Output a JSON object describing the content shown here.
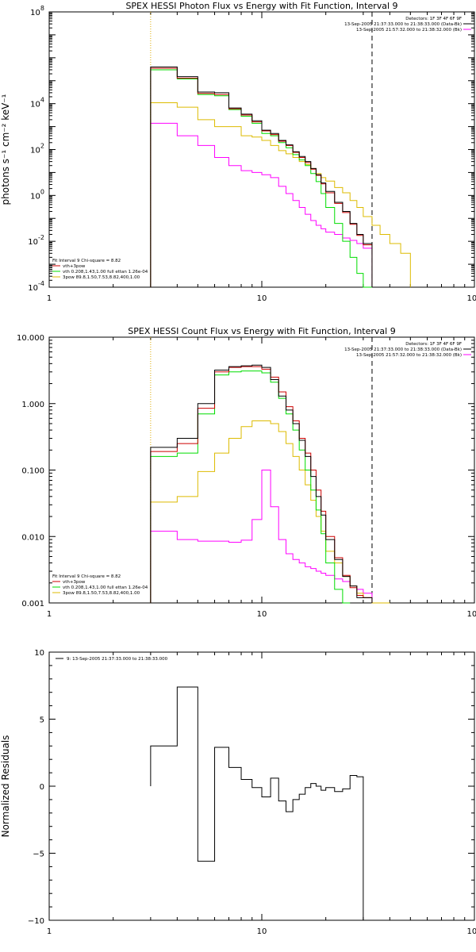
{
  "chart_data": [
    {
      "type": "line",
      "title": "SPEX HESSI Photon Flux vs Energy with Fit Function, Interval 9",
      "xlabel": "",
      "ylabel": "photons s⁻¹ cm⁻² keV⁻¹",
      "xscale": "log",
      "yscale": "log",
      "xlim": [
        1,
        100
      ],
      "ylim": [
        0.0001,
        100000000
      ],
      "x_ticks": [
        "1",
        "10",
        "100"
      ],
      "y_ticks": [
        {
          "v": 0.0001,
          "b": "10",
          "e": "-4"
        },
        {
          "v": 0.01,
          "b": "10",
          "e": "-2"
        },
        {
          "v": 1,
          "b": "10",
          "e": "0"
        },
        {
          "v": 100,
          "b": "10",
          "e": "2"
        },
        {
          "v": 10000,
          "b": "10",
          "e": "4"
        },
        {
          "v": 100000000,
          "b": "10",
          "e": "8"
        }
      ],
      "legend_top": [
        "Detectors: 1F 3F 4F 6F 9F",
        "13-Sep-2005 21:37:33.000 to 21:38:33.000 (Data-Bk)",
        "13-Sep-2005 21:57:32.000 to 21:38:32.000 (Bk)"
      ],
      "legend_top_colors": [
        "",
        "#000000",
        "#ff00ff"
      ],
      "legend_bottom": [
        "Fit Interval 9   Chi-square = 8.82",
        "vth+3pow",
        "vth 0.208,1.43,1.00  full ettan 1.26e-04",
        "3pow 89.8,1.50,7.53,8.82,400,1.00"
      ],
      "legend_bottom_colors": [
        "",
        "#cc0000",
        "#00dd00",
        "#ddbb00"
      ],
      "vlines": [
        {
          "x": 3,
          "style": "dotted",
          "color": "#ddaa00"
        },
        {
          "x": 33,
          "style": "dashed",
          "color": "#000000"
        }
      ],
      "energy_edges": [
        3,
        4,
        5,
        6,
        7,
        8,
        9,
        10,
        11,
        12,
        13,
        14,
        15,
        16,
        17,
        18,
        19,
        20,
        22,
        24,
        26,
        28,
        30,
        33,
        36,
        40,
        45,
        50
      ],
      "series": [
        {
          "name": "13-Sep-2005 21:37:33.000 to 21:38:33.000 (Data-Bk)",
          "color": "#000000",
          "values": [
            400000,
            150000,
            32000,
            30000,
            6500,
            3500,
            1800,
            700,
            500,
            250,
            160,
            80,
            50,
            30,
            15,
            8,
            3.5,
            1.5,
            0.5,
            0.2,
            0.06,
            0.02,
            0.008
          ]
        },
        {
          "name": "vth+3pow",
          "color": "#cc0000",
          "values": [
            350000,
            130000,
            28000,
            25000,
            6000,
            3200,
            1600,
            650,
            450,
            230,
            150,
            75,
            45,
            27,
            14,
            7.5,
            3.2,
            1.3,
            0.45,
            0.18,
            0.055,
            0.018,
            0.007
          ]
        },
        {
          "name": "vth 0.208,1.43,1.00  full ettan 1.26e-04",
          "color": "#00dd00",
          "values": [
            300000,
            120000,
            25000,
            22000,
            5500,
            2800,
            1400,
            500,
            400,
            200,
            120,
            60,
            35,
            20,
            9,
            4,
            1.2,
            0.3,
            0.06,
            0.01,
            0.002,
            0.0004,
            0.0001
          ]
        },
        {
          "name": "3pow 89.8,1.50,7.53,8.82,400,1.00",
          "color": "#ddbb00",
          "values": [
            11000,
            7000,
            2000,
            1000,
            1000,
            400,
            350,
            250,
            150,
            90,
            65,
            45,
            30,
            22,
            15,
            9,
            6,
            4.2,
            2.2,
            1.3,
            0.6,
            0.3,
            0.12,
            0.05,
            0.02,
            0.008,
            0.003
          ]
        },
        {
          "name": "13-Sep-2005 21:57:32.000 to 21:38:32.000 (Bk)",
          "color": "#ff00ff",
          "values": [
            1400,
            400,
            150,
            45,
            20,
            12,
            10,
            8,
            6,
            2.5,
            1.2,
            0.6,
            0.3,
            0.15,
            0.08,
            0.05,
            0.035,
            0.025,
            0.02,
            0.014,
            0.011,
            0.008,
            0.005
          ]
        }
      ]
    },
    {
      "type": "line",
      "title": "SPEX HESSI Count Flux vs Energy with Fit Function, Interval 9",
      "xlabel": "",
      "ylabel": "",
      "xscale": "log",
      "yscale": "log",
      "xlim": [
        1,
        100
      ],
      "ylim": [
        0.001,
        10
      ],
      "x_ticks": [
        "1",
        "10",
        "100"
      ],
      "y_ticks": [
        {
          "v": 0.001,
          "t": "0.001"
        },
        {
          "v": 0.01,
          "t": "0.010"
        },
        {
          "v": 0.1,
          "t": "0.100"
        },
        {
          "v": 1,
          "t": "1.000"
        },
        {
          "v": 10,
          "t": "10.000"
        }
      ],
      "legend_top": [
        "Detectors: 1F 3F 4F 6F 9F",
        "13-Sep-2005 21:37:33.000 to 21:38:33.000 (Data-Bk)",
        "13-Sep-2005 21:57:32.000 to 21:38:32.000 (Bk)"
      ],
      "legend_top_colors": [
        "",
        "#000000",
        "#ff00ff"
      ],
      "legend_bottom": [
        "Fit Interval 9   Chi-square = 8.82",
        "vth+3pow",
        "vth 0.208,1.43,1.00  full ettan 1.26e-04",
        "3pow 89.8,1.50,7.53,8.82,400,1.00"
      ],
      "legend_bottom_colors": [
        "",
        "#cc0000",
        "#00dd00",
        "#ddbb00"
      ],
      "vlines": [
        {
          "x": 3,
          "style": "dotted",
          "color": "#ddaa00"
        },
        {
          "x": 33,
          "style": "dashed",
          "color": "#000000"
        }
      ],
      "energy_edges": [
        3,
        4,
        5,
        6,
        7,
        8,
        9,
        10,
        11,
        12,
        13,
        14,
        15,
        16,
        17,
        18,
        19,
        20,
        22,
        24,
        26,
        28,
        30,
        33,
        36,
        40,
        45,
        50
      ],
      "series": [
        {
          "name": "13-Sep-2005 21:37:33.000 to 21:38:33.000 (Data-Bk)",
          "color": "#000000",
          "values": [
            0.22,
            0.3,
            1.0,
            3.2,
            3.6,
            3.7,
            3.8,
            3.5,
            2.3,
            1.3,
            0.8,
            0.5,
            0.28,
            0.16,
            0.08,
            0.04,
            0.021,
            0.009,
            0.0045,
            0.0025,
            0.0018,
            0.0012,
            0.0012
          ]
        },
        {
          "name": "vth+3pow",
          "color": "#cc0000",
          "values": [
            0.19,
            0.25,
            0.85,
            3.0,
            3.5,
            3.6,
            3.6,
            3.3,
            2.5,
            1.5,
            0.9,
            0.55,
            0.3,
            0.18,
            0.1,
            0.05,
            0.024,
            0.01,
            0.0048,
            0.0026,
            0.0017,
            0.0013,
            0.0012
          ]
        },
        {
          "name": "vth 0.208,1.43,1.00  full ettan 1.26e-04",
          "color": "#00dd00",
          "values": [
            0.16,
            0.18,
            0.7,
            2.7,
            3.0,
            3.1,
            3.1,
            2.9,
            2.1,
            1.2,
            0.7,
            0.4,
            0.2,
            0.1,
            0.05,
            0.025,
            0.011,
            0.004,
            0.0016,
            0.0008
          ]
        },
        {
          "name": "3pow 89.8,1.50,7.53,8.82,400,1.00",
          "color": "#ddbb00",
          "values": [
            0.033,
            0.04,
            0.095,
            0.18,
            0.3,
            0.45,
            0.55,
            0.55,
            0.5,
            0.38,
            0.25,
            0.16,
            0.1,
            0.06,
            0.035,
            0.02,
            0.012,
            0.006,
            0.004,
            0.0025,
            0.0018,
            0.0014,
            0.0012,
            0.001,
            0.001
          ]
        },
        {
          "name": "13-Sep-2005 21:57:32.000 to 21:38:32.000 (Bk)",
          "color": "#ff00ff",
          "values": [
            0.012,
            0.009,
            0.0085,
            0.0085,
            0.0082,
            0.0088,
            0.018,
            0.1,
            0.028,
            0.009,
            0.0055,
            0.0045,
            0.004,
            0.0035,
            0.0033,
            0.003,
            0.0028,
            0.0026,
            0.0023,
            0.0021,
            0.0018,
            0.0016,
            0.0014
          ]
        }
      ]
    },
    {
      "type": "line",
      "title": "",
      "xlabel": "",
      "ylabel": "Normalized Residuals",
      "xscale": "log",
      "yscale": "linear",
      "xlim": [
        1,
        100
      ],
      "ylim": [
        -10,
        10
      ],
      "x_ticks": [
        "1",
        "10",
        "100"
      ],
      "y_ticks": [
        {
          "v": -10,
          "t": "−10"
        },
        {
          "v": -5,
          "t": "−5"
        },
        {
          "v": 0,
          "t": "0"
        },
        {
          "v": 5,
          "t": "5"
        },
        {
          "v": 10,
          "t": "10"
        }
      ],
      "legend_top": [
        "9: 13-Sep-2005 21:37:33.000 to 21:38:33.000"
      ],
      "legend_top_colors": [
        "#000000"
      ],
      "energy_edges": [
        3,
        4,
        5,
        6,
        7,
        8,
        9,
        10,
        11,
        12,
        13,
        14,
        15,
        16,
        17,
        18,
        19,
        20,
        22,
        24,
        26,
        28,
        30,
        33
      ],
      "series": [
        {
          "name": "9: 13-Sep-2005 21:37:33.000 to 21:38:33.000",
          "color": "#000000",
          "values": [
            3.0,
            7.4,
            -5.6,
            2.9,
            1.4,
            0.5,
            -0.1,
            -0.8,
            0.6,
            -1.1,
            -1.9,
            -1.0,
            -0.6,
            -0.1,
            0.2,
            0.0,
            -0.3,
            -0.1,
            -0.4,
            -0.2,
            0.8,
            0.7
          ]
        }
      ]
    }
  ]
}
